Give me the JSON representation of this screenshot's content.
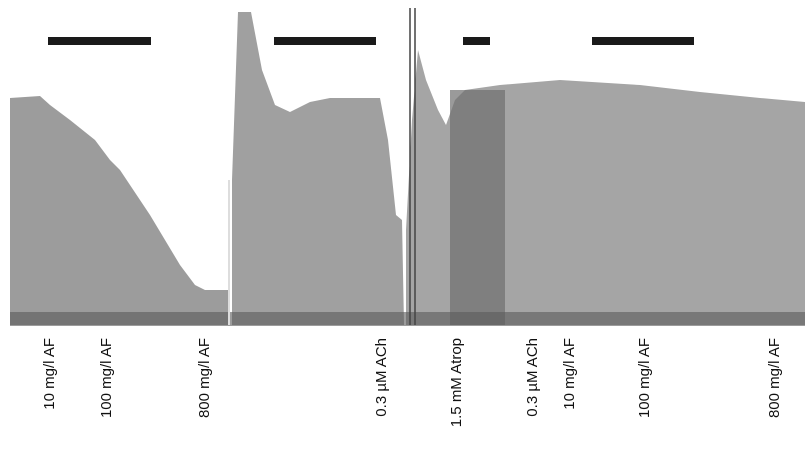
{
  "labels": [
    "10 mg/l AF",
    "100 mg/l AF",
    "800 mg/l AF",
    "0.3 µM ACh",
    "1.5 mM Atrop",
    "0.3 µM ACh",
    "10 mg/l AF",
    "100 mg/l AF",
    "800 mg/l AF"
  ]
}
